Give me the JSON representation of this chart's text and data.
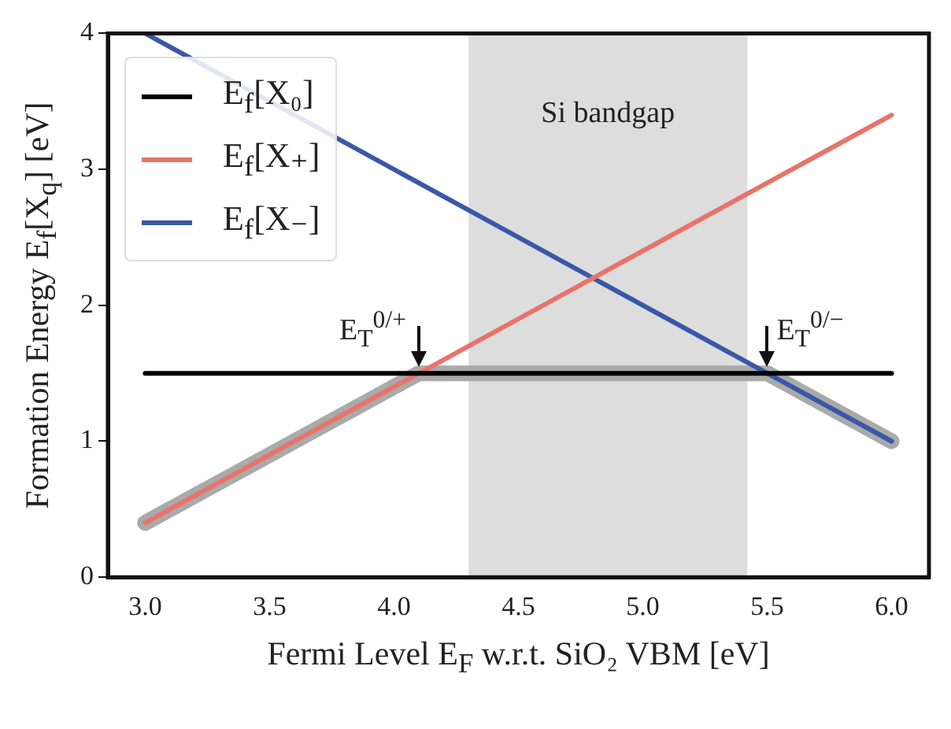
{
  "chart_data": {
    "type": "line",
    "xlabel": "Fermi Level E$_{F}$ w.r.t. SiO₂ VBM [eV]",
    "ylabel": "Formation Energy E$_{f}$[X$_{q}$] [eV]",
    "series": [
      {
        "name": "E$_{f}$[X₀]",
        "color": "#000000",
        "x": [
          3.0,
          6.0
        ],
        "values": [
          1.5,
          1.5
        ]
      },
      {
        "name": "E$_{f}$[X₊]",
        "color": "#e8736a",
        "x": [
          3.0,
          6.0
        ],
        "values": [
          0.4,
          3.4
        ]
      },
      {
        "name": "E$_{f}$[X₋]",
        "color": "#3a58a8",
        "x": [
          3.0,
          6.0
        ],
        "values": [
          4.0,
          1.0
        ]
      },
      {
        "color": "#aaaaaa",
        "x": [
          3.0,
          4.1,
          5.5,
          6.0
        ],
        "values": [
          0.4,
          1.5,
          1.5,
          1.0
        ]
      }
    ],
    "bands": [
      {
        "axis": "x",
        "from": 4.3,
        "to": 5.42,
        "label": "Si bandgap",
        "color": "#dddddd"
      }
    ],
    "annotations": [
      {
        "text": "E$_{T}$$^{0/+}$",
        "x": 4.1,
        "y": 1.5
      },
      {
        "text": "E$_{T}$$^{0/−}$",
        "x": 5.5,
        "y": 1.5
      }
    ],
    "xlim": [
      2.85,
      6.15
    ],
    "xticks": [
      {
        "value": 3,
        "label": "3.0"
      },
      3.5,
      {
        "value": 4,
        "label": "4.0"
      },
      4.5,
      {
        "value": 5,
        "label": "5.0"
      },
      5.5,
      {
        "value": 6,
        "label": "6.0"
      }
    ],
    "ylim": [
      0,
      4
    ],
    "yticks": [
      0,
      1,
      2,
      3,
      4
    ],
    "grid": false,
    "legend": "top left",
    "marker": "none",
    "line_style": "solid"
  }
}
